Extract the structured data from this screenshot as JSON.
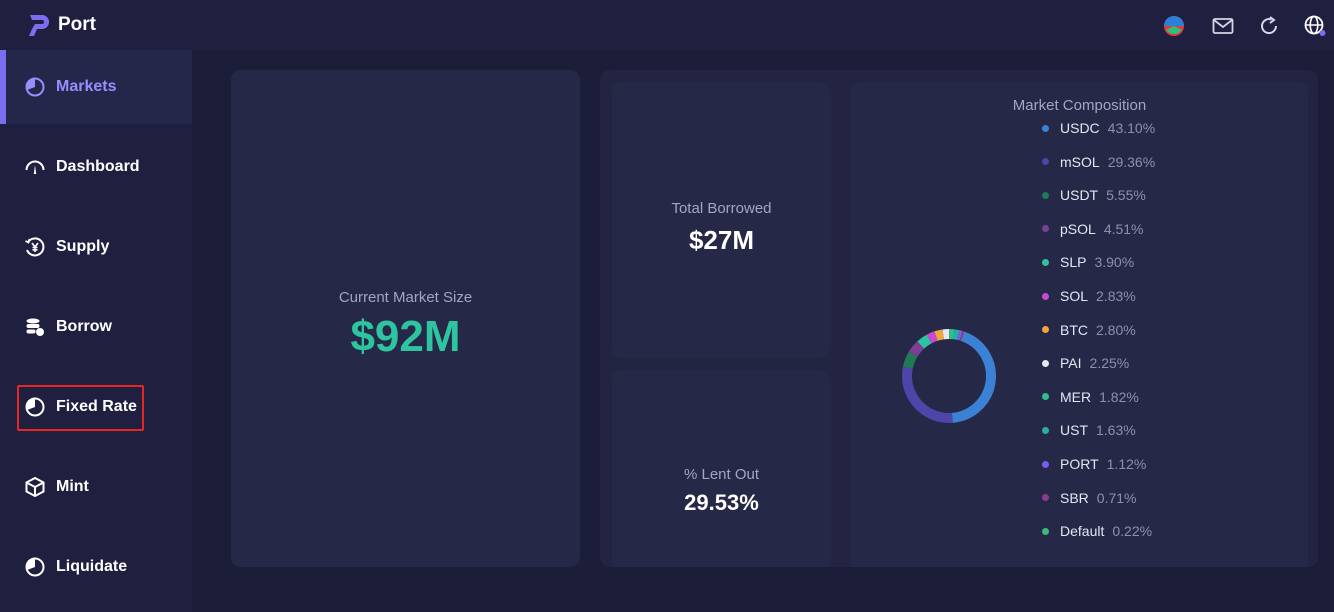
{
  "app": {
    "brand": "Port",
    "colors": {
      "accent": "#7c6cf0",
      "positive": "#2ec4a0"
    }
  },
  "topbar": {
    "icons": [
      "wallet-icon",
      "mail-icon",
      "refresh-icon",
      "globe-icon"
    ]
  },
  "sidebar": {
    "items": [
      {
        "label": "Markets",
        "icon": "pie-chart-icon",
        "active": true
      },
      {
        "label": "Dashboard",
        "icon": "gauge-icon",
        "active": false
      },
      {
        "label": "Supply",
        "icon": "yen-coin-icon",
        "active": false
      },
      {
        "label": "Borrow",
        "icon": "coins-stack-icon",
        "active": false
      },
      {
        "label": "Fixed Rate",
        "icon": "pie-chart-icon",
        "active": false
      },
      {
        "label": "Mint",
        "icon": "cube-icon",
        "active": false
      },
      {
        "label": "Liquidate",
        "icon": "pie-chart-icon",
        "active": false
      }
    ]
  },
  "stats": {
    "market_size": {
      "title": "Current Market Size",
      "value": "$92M"
    },
    "total_borrowed": {
      "title": "Total Borrowed",
      "value": "$27M"
    },
    "lent_out": {
      "title": "% Lent Out",
      "value": "29.53%"
    }
  },
  "composition": {
    "title": "Market Composition",
    "items": [
      {
        "name": "USDC",
        "pct": "43.10%",
        "color": "#3b82d6"
      },
      {
        "name": "mSOL",
        "pct": "29.36%",
        "color": "#4f44a8"
      },
      {
        "name": "USDT",
        "pct": "5.55%",
        "color": "#1f7a55"
      },
      {
        "name": "pSOL",
        "pct": "4.51%",
        "color": "#7b3f94"
      },
      {
        "name": "SLP",
        "pct": "3.90%",
        "color": "#2fc4a0"
      },
      {
        "name": "SOL",
        "pct": "2.83%",
        "color": "#c74ad1"
      },
      {
        "name": "BTC",
        "pct": "2.80%",
        "color": "#f0a63a"
      },
      {
        "name": "PAI",
        "pct": "2.25%",
        "color": "#e8e8f2"
      },
      {
        "name": "MER",
        "pct": "1.82%",
        "color": "#2fbf8f"
      },
      {
        "name": "UST",
        "pct": "1.63%",
        "color": "#26b0a0"
      },
      {
        "name": "PORT",
        "pct": "1.12%",
        "color": "#7b5cf0"
      },
      {
        "name": "SBR",
        "pct": "0.71%",
        "color": "#8a3c8f"
      },
      {
        "name": "Default",
        "pct": "0.22%",
        "color": "#3cb87a"
      }
    ],
    "values": [
      43.1,
      29.36,
      5.55,
      4.51,
      3.9,
      2.83,
      2.8,
      2.25,
      1.82,
      1.63,
      1.12,
      0.71,
      0.22
    ]
  }
}
